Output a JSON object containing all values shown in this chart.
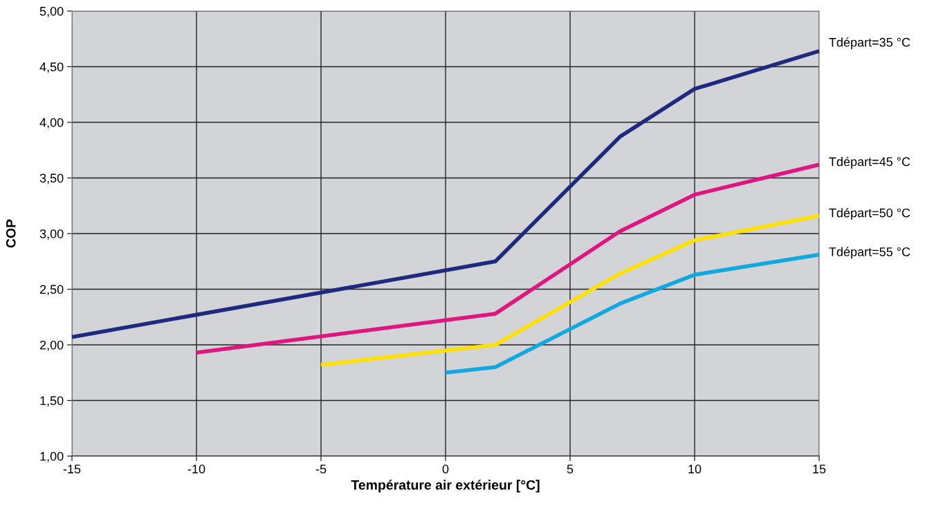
{
  "chart_data": {
    "type": "line",
    "xlabel": "Température air extérieur [°C]",
    "ylabel": "COP",
    "xlim": [
      -15,
      15
    ],
    "xticks": [
      -15,
      -10,
      -5,
      0,
      5,
      10,
      15
    ],
    "ylim": [
      1,
      5
    ],
    "yticks": [
      {
        "value": 1,
        "label": "1,00"
      },
      {
        "value": 1.5,
        "label": "1,50"
      },
      {
        "value": 2,
        "label": "2,00"
      },
      {
        "value": 2.5,
        "label": "2,50"
      },
      {
        "value": 3,
        "label": "3,00"
      },
      {
        "value": 3.5,
        "label": "3,50"
      },
      {
        "value": 4,
        "label": "4,00"
      },
      {
        "value": 4.5,
        "label": "4,50"
      },
      {
        "value": 5,
        "label": "5,00"
      }
    ],
    "grid": true,
    "legend": false,
    "marker": "none",
    "line_style": "solid",
    "series": [
      {
        "name": "Tdépart=35 °C",
        "color": "#1f2a7f",
        "x": [
          -15,
          2,
          7,
          10,
          15
        ],
        "values": [
          2.07,
          2.75,
          3.87,
          4.3,
          4.64
        ]
      },
      {
        "name": "Tdépart=45 °C",
        "color": "#e0157f",
        "x": [
          -10,
          2,
          7,
          10,
          15
        ],
        "values": [
          1.93,
          2.28,
          3.02,
          3.35,
          3.62
        ]
      },
      {
        "name": "Tdépart=50 °C",
        "color": "#ffe100",
        "x": [
          -5,
          2,
          7,
          10,
          15
        ],
        "values": [
          1.82,
          2.0,
          2.64,
          2.94,
          3.16
        ]
      },
      {
        "name": "Tdépart=55 °C",
        "color": "#12a8e0",
        "x": [
          0,
          2,
          7,
          10,
          15
        ],
        "values": [
          1.75,
          1.8,
          2.37,
          2.63,
          2.81
        ]
      }
    ]
  }
}
